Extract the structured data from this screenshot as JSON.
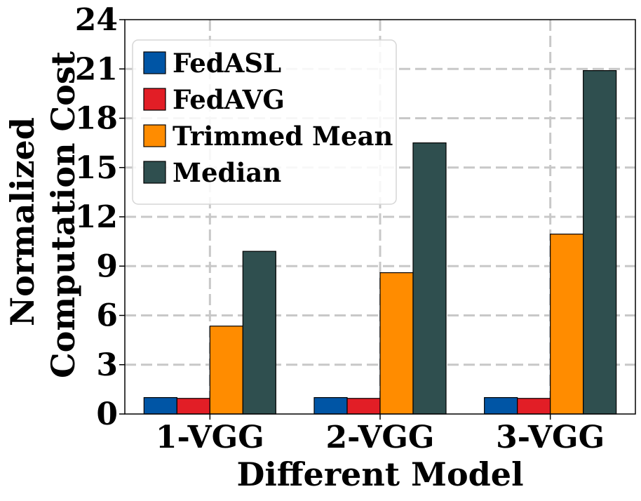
{
  "chart_data": {
    "type": "bar",
    "categories": [
      "1-VGG",
      "2-VGG",
      "3-VGG"
    ],
    "series": [
      {
        "name": "FedASL",
        "color": "#0055a5",
        "values": [
          1.0,
          1.0,
          1.0
        ]
      },
      {
        "name": "FedAVG",
        "color": "#e21e26",
        "values": [
          0.95,
          0.95,
          0.95
        ]
      },
      {
        "name": "Trimmed Mean",
        "color": "#ff8c00",
        "values": [
          5.35,
          8.6,
          10.95
        ]
      },
      {
        "name": "Median",
        "color": "#2f4f4f",
        "values": [
          9.9,
          16.5,
          20.9
        ]
      }
    ],
    "xlabel": "Different Model",
    "ylabel_lines": [
      "Normalized",
      "Computation Cost"
    ],
    "ylim": [
      0,
      24
    ],
    "yticks": [
      "0",
      "3",
      "6",
      "9",
      "12",
      "15",
      "18",
      "21",
      "24"
    ],
    "grid": true,
    "legend_position": "top-left"
  }
}
